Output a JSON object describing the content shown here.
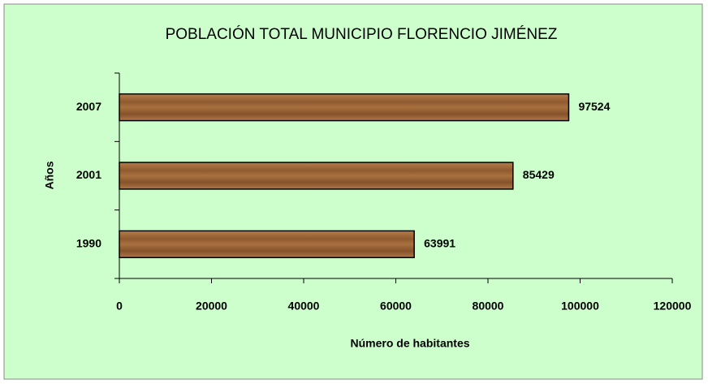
{
  "chart_data": {
    "type": "bar",
    "orientation": "horizontal",
    "title": "POBLACIÓN TOTAL MUNICIPIO FLORENCIO JIMÉNEZ",
    "categories": [
      "1990",
      "2001",
      "2007"
    ],
    "values": [
      63991,
      85429,
      97524
    ],
    "color": "#9c6638",
    "xlabel": "Número de habitantes",
    "ylabel": "Años",
    "xlim": [
      0,
      120000
    ],
    "xticks": [
      0,
      20000,
      40000,
      60000,
      80000,
      100000,
      120000
    ],
    "grid": false,
    "background": "#ccffcc"
  }
}
